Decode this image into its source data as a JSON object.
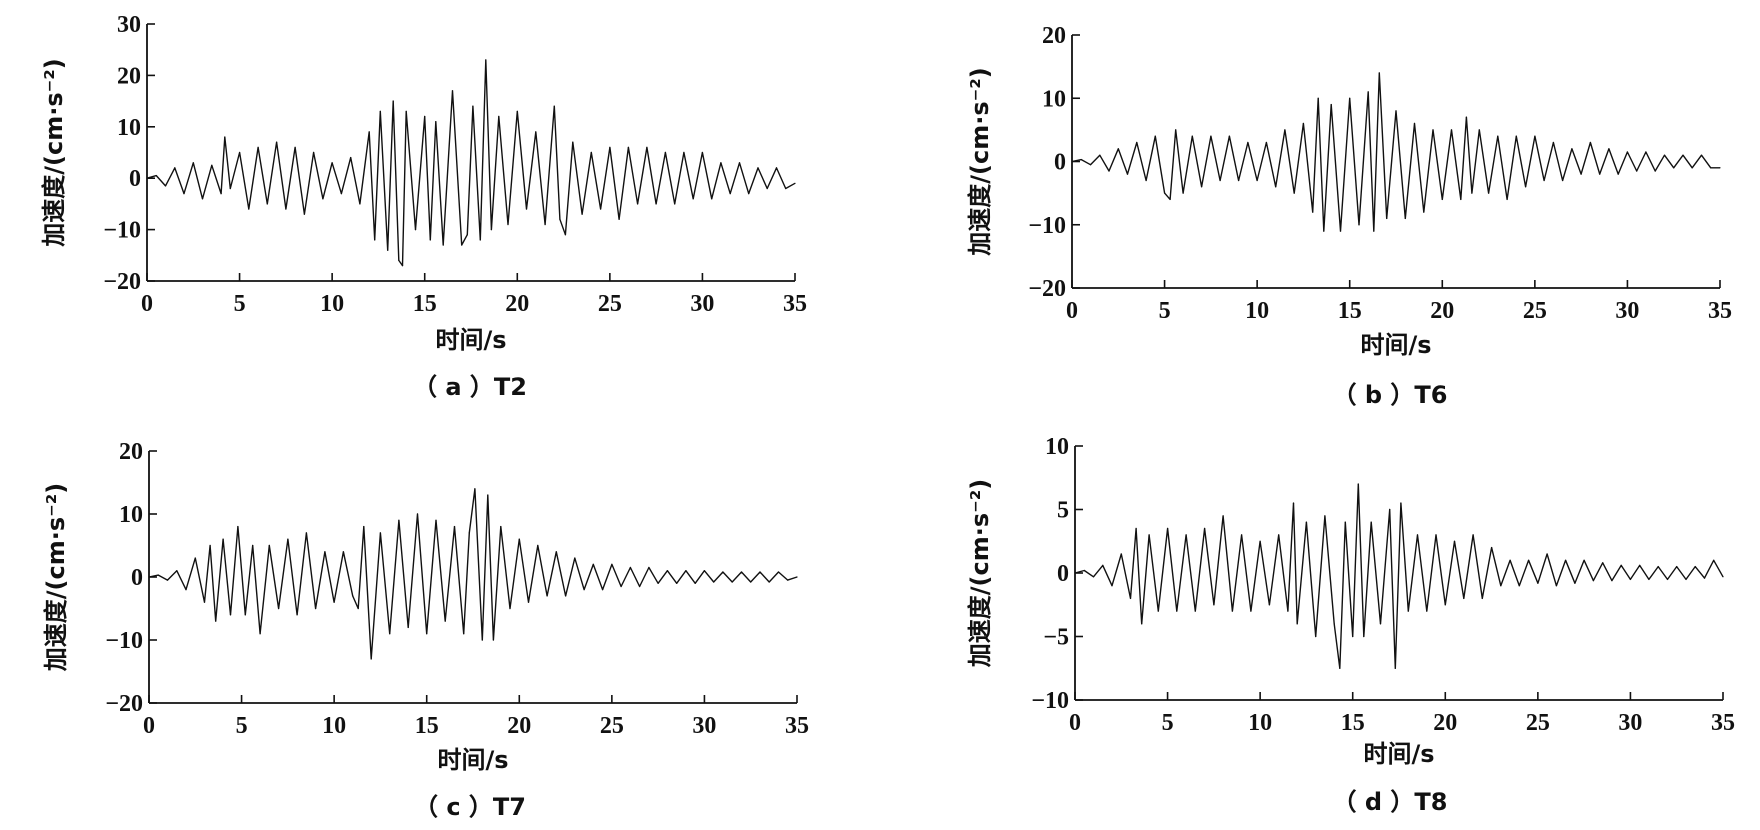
{
  "chart_data": [
    {
      "type": "line",
      "caption": "（ a ）T2",
      "xlabel": "时间/s",
      "ylabel": "加速度/(cm·s⁻²)",
      "xlim": [
        0,
        35
      ],
      "ylim": [
        -20,
        30
      ],
      "xticks": [
        0,
        5,
        10,
        15,
        20,
        25,
        30,
        35
      ],
      "yticks": [
        -20,
        -10,
        0,
        10,
        20,
        30
      ],
      "grid": false,
      "series": [
        {
          "x": [
            0,
            0.5,
            1,
            1.5,
            2,
            2.5,
            3,
            3.5,
            4,
            4.2,
            4.5,
            5,
            5.5,
            6,
            6.5,
            7,
            7.5,
            8,
            8.5,
            9,
            9.5,
            10,
            10.5,
            11,
            11.5,
            12,
            12.3,
            12.6,
            13,
            13.3,
            13.6,
            13.8,
            14,
            14.5,
            15,
            15.3,
            15.6,
            16,
            16.5,
            17,
            17.3,
            17.6,
            18,
            18.3,
            18.6,
            19,
            19.5,
            20,
            20.5,
            21,
            21.5,
            22,
            22.3,
            22.6,
            23,
            23.5,
            24,
            24.5,
            25,
            25.5,
            26,
            26.5,
            27,
            27.5,
            28,
            28.5,
            29,
            29.5,
            30,
            30.5,
            31,
            31.5,
            32,
            32.5,
            33,
            33.5,
            34,
            34.5,
            35
          ],
          "values": [
            0,
            0.5,
            -1.5,
            2,
            -3,
            3,
            -4,
            2.5,
            -3,
            8,
            -2,
            5,
            -6,
            6,
            -5,
            7,
            -6,
            6,
            -7,
            5,
            -4,
            3,
            -3,
            4,
            -5,
            9,
            -12,
            13,
            -14,
            15,
            -16,
            -17,
            13,
            -10,
            12,
            -12,
            11,
            -13,
            17,
            -13,
            -11,
            14,
            -12,
            23,
            -10,
            12,
            -9,
            13,
            -6,
            9,
            -9,
            14,
            -8,
            -11,
            7,
            -7,
            5,
            -6,
            6,
            -8,
            6,
            -5,
            6,
            -5,
            5,
            -5,
            5,
            -4,
            5,
            -4,
            3,
            -3,
            3,
            -3,
            2,
            -2,
            2,
            -2,
            -1
          ]
        }
      ]
    },
    {
      "type": "line",
      "caption": "（ b ）T6",
      "xlabel": "时间/s",
      "ylabel": "加速度/(cm·s⁻²)",
      "xlim": [
        0,
        35
      ],
      "ylim": [
        -20,
        20
      ],
      "xticks": [
        0,
        5,
        10,
        15,
        20,
        25,
        30,
        35
      ],
      "yticks": [
        -20,
        -10,
        0,
        10,
        20
      ],
      "grid": false,
      "series": [
        {
          "x": [
            0,
            0.5,
            1,
            1.5,
            2,
            2.5,
            3,
            3.5,
            4,
            4.5,
            5,
            5.3,
            5.6,
            6,
            6.5,
            7,
            7.5,
            8,
            8.5,
            9,
            9.5,
            10,
            10.5,
            11,
            11.5,
            12,
            12.5,
            13,
            13.3,
            13.6,
            14,
            14.5,
            15,
            15.5,
            16,
            16.3,
            16.6,
            17,
            17.5,
            18,
            18.5,
            19,
            19.5,
            20,
            20.5,
            21,
            21.3,
            21.6,
            22,
            22.5,
            23,
            23.5,
            24,
            24.5,
            25,
            25.5,
            26,
            26.5,
            27,
            27.5,
            28,
            28.5,
            29,
            29.5,
            30,
            30.5,
            31,
            31.5,
            32,
            32.5,
            33,
            33.5,
            34,
            34.5,
            35
          ],
          "values": [
            0,
            0.3,
            -0.5,
            1,
            -1.5,
            2,
            -2,
            3,
            -3,
            4,
            -5,
            -6,
            5,
            -5,
            4,
            -4,
            4,
            -3,
            4,
            -3,
            3,
            -3,
            3,
            -4,
            5,
            -5,
            6,
            -8,
            10,
            -11,
            9,
            -11,
            10,
            -10,
            11,
            -11,
            14,
            -9,
            8,
            -9,
            6,
            -8,
            5,
            -6,
            5,
            -6,
            7,
            -5,
            5,
            -5,
            4,
            -6,
            4,
            -4,
            4,
            -3,
            3,
            -3,
            2,
            -2,
            3,
            -2,
            2,
            -2,
            1.5,
            -1.5,
            1.5,
            -1.5,
            1,
            -1,
            1,
            -1,
            1,
            -1,
            -1
          ]
        }
      ]
    },
    {
      "type": "line",
      "caption": "（ c ）T7",
      "xlabel": "时间/s",
      "ylabel": "加速度/(cm·s⁻²)",
      "xlim": [
        0,
        35
      ],
      "ylim": [
        -20,
        20
      ],
      "xticks": [
        0,
        5,
        10,
        15,
        20,
        25,
        30,
        35
      ],
      "yticks": [
        -20,
        -10,
        0,
        10,
        20
      ],
      "grid": false,
      "series": [
        {
          "x": [
            0,
            0.5,
            1,
            1.5,
            2,
            2.5,
            3,
            3.3,
            3.6,
            4,
            4.4,
            4.8,
            5.2,
            5.6,
            6,
            6.5,
            7,
            7.5,
            8,
            8.5,
            9,
            9.5,
            10,
            10.5,
            11,
            11.3,
            11.6,
            12,
            12.5,
            13,
            13.5,
            14,
            14.5,
            15,
            15.5,
            16,
            16.5,
            17,
            17.3,
            17.6,
            18,
            18.3,
            18.6,
            19,
            19.5,
            20,
            20.5,
            21,
            21.5,
            22,
            22.5,
            23,
            23.5,
            24,
            24.5,
            25,
            25.5,
            26,
            26.5,
            27,
            27.5,
            28,
            28.5,
            29,
            29.5,
            30,
            30.5,
            31,
            31.5,
            32,
            32.5,
            33,
            33.5,
            34,
            34.5,
            35
          ],
          "values": [
            0,
            0.3,
            -0.5,
            1,
            -2,
            3,
            -4,
            5,
            -7,
            6,
            -6,
            8,
            -6,
            5,
            -9,
            5,
            -5,
            6,
            -6,
            7,
            -5,
            4,
            -4,
            4,
            -3,
            -5,
            8,
            -13,
            7,
            -9,
            9,
            -8,
            10,
            -9,
            9,
            -7,
            8,
            -9,
            7,
            14,
            -10,
            13,
            -10,
            8,
            -5,
            6,
            -4,
            5,
            -3,
            4,
            -3,
            3,
            -2,
            2,
            -2,
            2,
            -1.5,
            1.5,
            -1.5,
            1.5,
            -1,
            1,
            -1,
            1,
            -1,
            1,
            -0.8,
            0.8,
            -0.8,
            0.8,
            -0.8,
            0.8,
            -0.8,
            0.8,
            -0.5,
            0
          ]
        }
      ]
    },
    {
      "type": "line",
      "caption": "（ d ）T8",
      "xlabel": "时间/s",
      "ylabel": "加速度/(cm·s⁻²)",
      "xlim": [
        0,
        35
      ],
      "ylim": [
        -10,
        10
      ],
      "xticks": [
        0,
        5,
        10,
        15,
        20,
        25,
        30,
        35
      ],
      "yticks": [
        -10,
        -5,
        0,
        5,
        10
      ],
      "grid": false,
      "series": [
        {
          "x": [
            0,
            0.5,
            1,
            1.5,
            2,
            2.5,
            3,
            3.3,
            3.6,
            4,
            4.5,
            5,
            5.5,
            6,
            6.5,
            7,
            7.5,
            8,
            8.5,
            9,
            9.5,
            10,
            10.5,
            11,
            11.5,
            11.8,
            12,
            12.5,
            13,
            13.5,
            14,
            14.3,
            14.6,
            15,
            15.3,
            15.6,
            16,
            16.5,
            17,
            17.3,
            17.6,
            18,
            18.5,
            19,
            19.5,
            20,
            20.5,
            21,
            21.5,
            22,
            22.5,
            23,
            23.5,
            24,
            24.5,
            25,
            25.5,
            26,
            26.5,
            27,
            27.5,
            28,
            28.5,
            29,
            29.5,
            30,
            30.5,
            31,
            31.5,
            32,
            32.5,
            33,
            33.5,
            34,
            34.5,
            35
          ],
          "values": [
            0,
            0.2,
            -0.3,
            0.6,
            -1,
            1.5,
            -2,
            3.5,
            -4,
            3,
            -3,
            3.5,
            -3,
            3,
            -3,
            3.5,
            -2.5,
            4.5,
            -3,
            3,
            -3,
            2.5,
            -2.5,
            3,
            -3,
            5.5,
            -4,
            4,
            -5,
            4.5,
            -4,
            -7.5,
            4,
            -5,
            7,
            -5,
            4,
            -4,
            5,
            -7.5,
            5.5,
            -3,
            3,
            -3,
            3,
            -2.5,
            2.5,
            -2,
            3,
            -2,
            2,
            -1,
            1,
            -1,
            1,
            -0.8,
            1.5,
            -1,
            1,
            -0.8,
            1,
            -0.6,
            0.8,
            -0.6,
            0.6,
            -0.5,
            0.6,
            -0.5,
            0.5,
            -0.5,
            0.5,
            -0.5,
            0.5,
            -0.4,
            1,
            -0.3
          ]
        }
      ]
    }
  ]
}
